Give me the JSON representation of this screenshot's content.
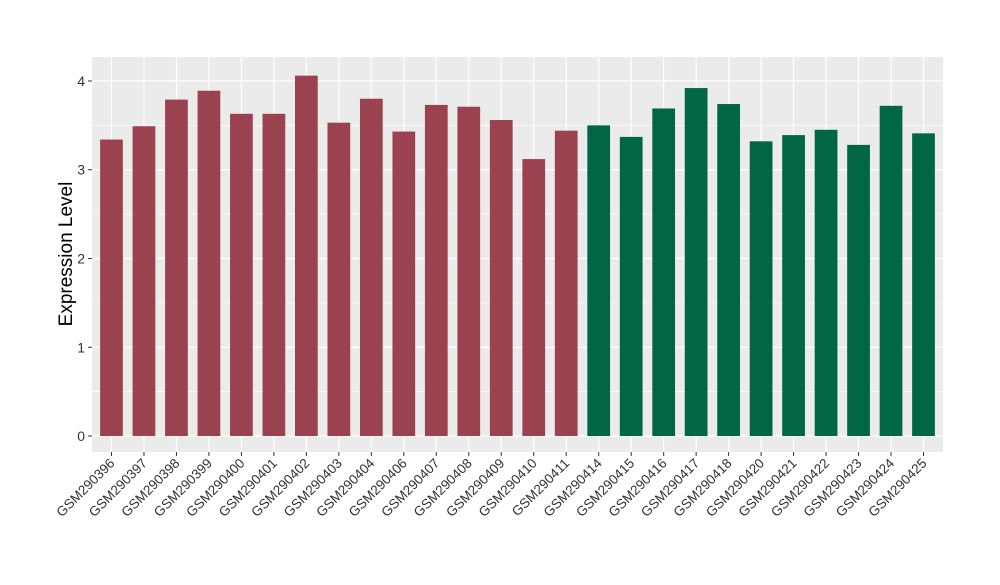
{
  "chart_data": {
    "type": "bar",
    "title": "",
    "xlabel": "",
    "ylabel": "Expression Level",
    "ylim": [
      -0.18,
      4.27
    ],
    "yticks": [
      0,
      1,
      2,
      3,
      4
    ],
    "grid": true,
    "legend": "none",
    "colors": {
      "panel_background": "#EBEBEB",
      "grid_major": "#FFFFFF",
      "group_1": "#9B4250",
      "group_2": "#006644"
    },
    "categories": [
      "GSM290396",
      "GSM290397",
      "GSM290398",
      "GSM290399",
      "GSM290400",
      "GSM290401",
      "GSM290402",
      "GSM290403",
      "GSM290404",
      "GSM290406",
      "GSM290407",
      "GSM290408",
      "GSM290409",
      "GSM290410",
      "GSM290411",
      "GSM290414",
      "GSM290415",
      "GSM290416",
      "GSM290417",
      "GSM290418",
      "GSM290420",
      "GSM290421",
      "GSM290422",
      "GSM290423",
      "GSM290424",
      "GSM290425"
    ],
    "values": [
      3.34,
      3.49,
      3.79,
      3.89,
      3.63,
      3.63,
      4.06,
      3.53,
      3.8,
      3.43,
      3.73,
      3.71,
      3.56,
      3.12,
      3.44,
      3.5,
      3.37,
      3.69,
      3.92,
      3.74,
      3.32,
      3.39,
      3.45,
      3.28,
      3.72,
      3.41
    ],
    "groups": [
      1,
      1,
      1,
      1,
      1,
      1,
      1,
      1,
      1,
      1,
      1,
      1,
      1,
      1,
      1,
      2,
      2,
      2,
      2,
      2,
      2,
      2,
      2,
      2,
      2,
      2
    ]
  }
}
